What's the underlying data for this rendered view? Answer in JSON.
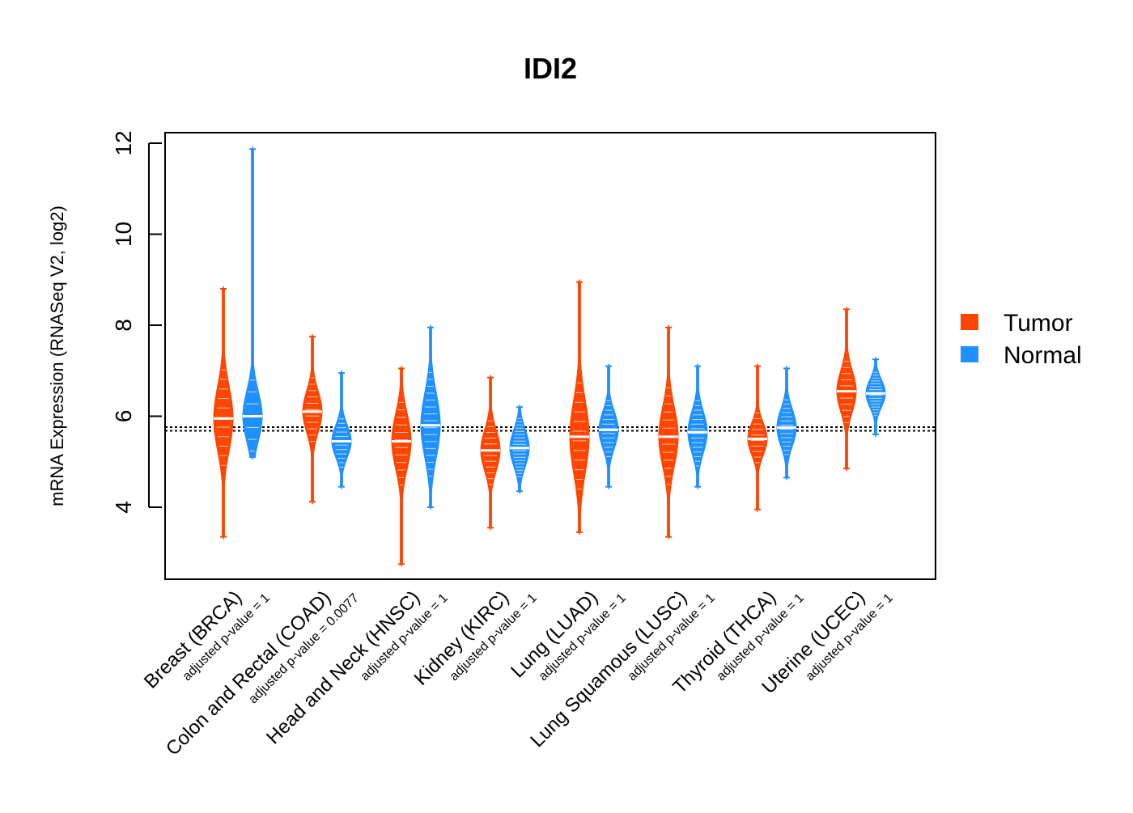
{
  "chart_data": {
    "type": "violin",
    "title": "IDI2",
    "ylabel": "mRNA Expression (RNASeq V2, log2)",
    "xlabel": "",
    "ylim": [
      2.5,
      12.2
    ],
    "yticks": [
      4,
      6,
      8,
      10,
      12
    ],
    "reference_lines": [
      5.68,
      5.76
    ],
    "legend": {
      "placement": "right",
      "entries": [
        {
          "name": "Tumor",
          "color": "#FF4500"
        },
        {
          "name": "Normal",
          "color": "#1E90FF"
        }
      ]
    },
    "colors": {
      "tumor": "#FF4500",
      "normal": "#1E90FF"
    },
    "groups": [
      {
        "category": "Breast (BRCA)",
        "pvalue_label": "adjusted p-value = 1",
        "tumor": {
          "min": 3.35,
          "max": 8.8,
          "median": 5.95,
          "spread": 0.7
        },
        "normal": {
          "min": 5.1,
          "max": 11.87,
          "median": 6.0,
          "spread": 0.55
        }
      },
      {
        "category": "Colon and Rectal (COAD)",
        "pvalue_label": "adjusted p-value = 0.0077",
        "tumor": {
          "min": 4.12,
          "max": 7.75,
          "median": 6.1,
          "spread": 0.45
        },
        "normal": {
          "min": 4.45,
          "max": 6.95,
          "median": 5.45,
          "spread": 0.35
        }
      },
      {
        "category": "Head and Neck (HNSC)",
        "pvalue_label": "adjusted p-value = 1",
        "tumor": {
          "min": 2.75,
          "max": 7.05,
          "median": 5.45,
          "spread": 0.6
        },
        "normal": {
          "min": 4.0,
          "max": 7.95,
          "median": 5.8,
          "spread": 0.7
        }
      },
      {
        "category": "Kidney (KIRC)",
        "pvalue_label": "adjusted p-value = 1",
        "tumor": {
          "min": 3.55,
          "max": 6.85,
          "median": 5.25,
          "spread": 0.45
        },
        "normal": {
          "min": 4.35,
          "max": 6.2,
          "median": 5.3,
          "spread": 0.4
        }
      },
      {
        "category": "Lung (LUAD)",
        "pvalue_label": "adjusted p-value = 1",
        "tumor": {
          "min": 3.45,
          "max": 8.95,
          "median": 5.55,
          "spread": 0.8
        },
        "normal": {
          "min": 4.45,
          "max": 7.1,
          "median": 5.7,
          "spread": 0.4
        }
      },
      {
        "category": "Lung Squamous (LUSC)",
        "pvalue_label": "adjusted p-value = 1",
        "tumor": {
          "min": 3.35,
          "max": 7.95,
          "median": 5.55,
          "spread": 0.65
        },
        "normal": {
          "min": 4.45,
          "max": 7.1,
          "median": 5.65,
          "spread": 0.45
        }
      },
      {
        "category": "Thyroid (THCA)",
        "pvalue_label": "adjusted p-value = 1",
        "tumor": {
          "min": 3.95,
          "max": 7.1,
          "median": 5.5,
          "spread": 0.35
        },
        "normal": {
          "min": 4.65,
          "max": 7.05,
          "median": 5.75,
          "spread": 0.4
        }
      },
      {
        "category": "Uterine (UCEC)",
        "pvalue_label": "adjusted p-value = 1",
        "tumor": {
          "min": 4.85,
          "max": 8.35,
          "median": 6.55,
          "spread": 0.45
        },
        "normal": {
          "min": 5.6,
          "max": 7.25,
          "median": 6.5,
          "spread": 0.3
        }
      }
    ]
  }
}
